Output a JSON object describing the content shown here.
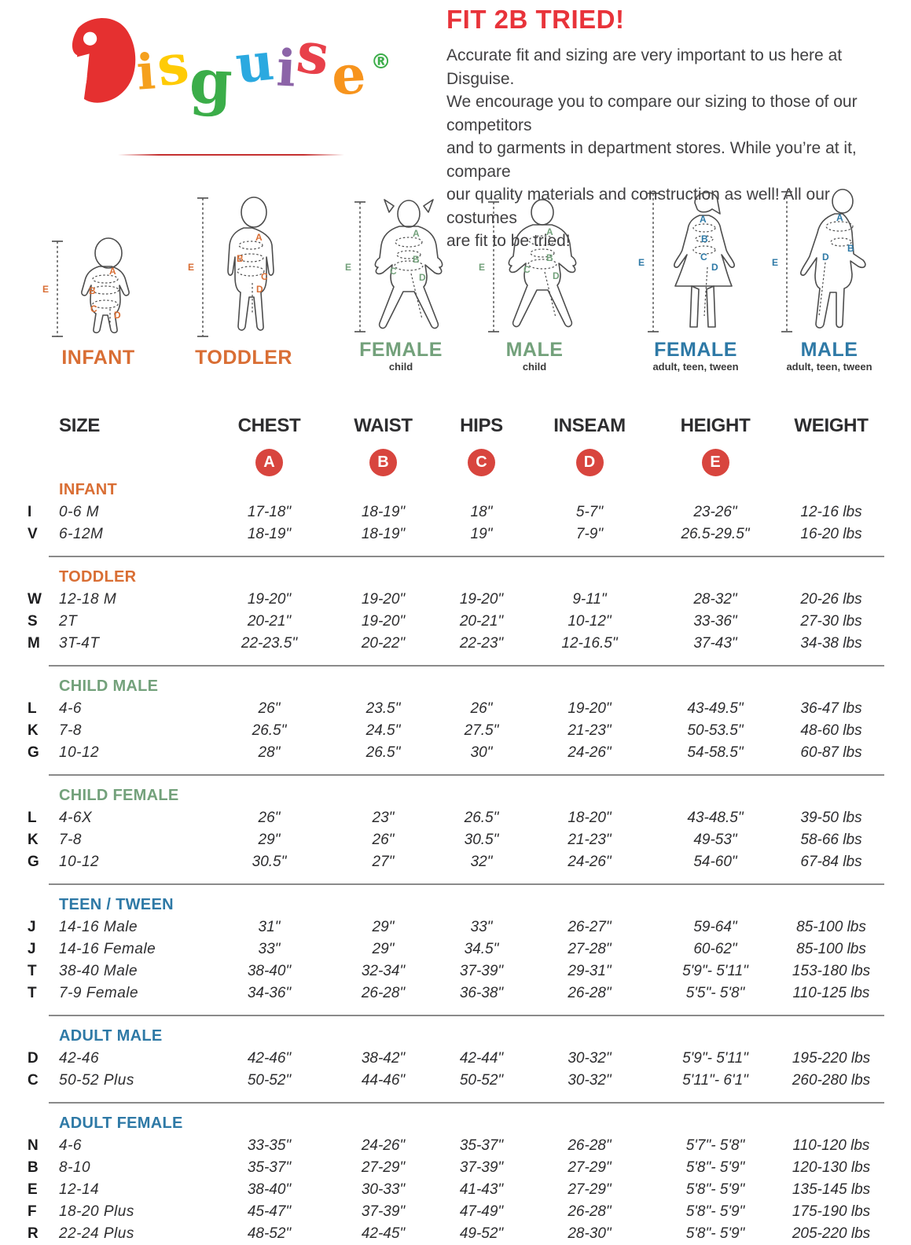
{
  "logo": {
    "letters": [
      {
        "ch": "D",
        "color": "#e53030"
      },
      {
        "ch": "i",
        "color": "#f5a01d"
      },
      {
        "ch": "s",
        "color": "#ffcb05"
      },
      {
        "ch": "g",
        "color": "#3bad49"
      },
      {
        "ch": "u",
        "color": "#2ba9e0"
      },
      {
        "ch": "i",
        "color": "#8c64a8"
      },
      {
        "ch": "s",
        "color": "#e8404a"
      },
      {
        "ch": "e",
        "color": "#f7941d"
      }
    ],
    "reg_mark": "®",
    "reg_color": "#3bad49"
  },
  "intro": {
    "title": "FIT 2B TRIED!",
    "title_color": "#e8333a",
    "lines": [
      "Accurate fit and sizing are very important to us here at Disguise.",
      "We encourage you to compare our sizing to those of our competitors",
      "and to garments in department stores. While you’re at it, compare",
      "our quality materials and construction as well! All our costumes",
      "are fit to be tried!"
    ]
  },
  "figures": [
    {
      "label": "INFANT",
      "sublabel": "",
      "color": "#d96e34",
      "letters": [
        "A",
        "B",
        "C",
        "D",
        "E"
      ]
    },
    {
      "label": "TODDLER",
      "sublabel": "",
      "color": "#d96e34",
      "letters": [
        "A",
        "B",
        "C",
        "D",
        "E"
      ]
    },
    {
      "label": "FEMALE",
      "sublabel": "child",
      "color": "#73a17b",
      "letters": [
        "A",
        "B",
        "C",
        "D",
        "E"
      ]
    },
    {
      "label": "MALE",
      "sublabel": "child",
      "color": "#73a17b",
      "letters": [
        "A",
        "B",
        "C",
        "D",
        "E"
      ]
    },
    {
      "label": "FEMALE",
      "sublabel": "adult, teen, tween",
      "color": "#2e79a6",
      "letters": [
        "A",
        "B",
        "C",
        "D",
        "E"
      ]
    },
    {
      "label": "MALE",
      "sublabel": "adult, teen, tween",
      "color": "#2e79a6",
      "letters": [
        "A",
        "B",
        "D",
        "E"
      ]
    }
  ],
  "table": {
    "columns": [
      "SIZE",
      "CHEST",
      "WAIST",
      "HIPS",
      "INSEAM",
      "HEIGHT",
      "WEIGHT"
    ],
    "badges": [
      "A",
      "B",
      "C",
      "D",
      "E"
    ],
    "badge_color": "#d8453e",
    "sections": [
      {
        "name": "INFANT",
        "color": "#d96e34",
        "rows": [
          {
            "letter": "I",
            "size": "0-6 M",
            "chest": "17-18\"",
            "waist": "18-19\"",
            "hips": "18\"",
            "inseam": "5-7\"",
            "height": "23-26\"",
            "weight": "12-16 lbs"
          },
          {
            "letter": "V",
            "size": "6-12M",
            "chest": "18-19\"",
            "waist": "18-19\"",
            "hips": "19\"",
            "inseam": "7-9\"",
            "height": "26.5-29.5\"",
            "weight": "16-20 lbs"
          }
        ]
      },
      {
        "name": "TODDLER",
        "color": "#d96e34",
        "rows": [
          {
            "letter": "W",
            "size": "12-18 M",
            "chest": "19-20\"",
            "waist": "19-20\"",
            "hips": "19-20\"",
            "inseam": "9-11\"",
            "height": "28-32\"",
            "weight": "20-26 lbs"
          },
          {
            "letter": "S",
            "size": "2T",
            "chest": "20-21\"",
            "waist": "19-20\"",
            "hips": "20-21\"",
            "inseam": "10-12\"",
            "height": "33-36\"",
            "weight": "27-30 lbs"
          },
          {
            "letter": "M",
            "size": "3T-4T",
            "chest": "22-23.5\"",
            "waist": "20-22\"",
            "hips": "22-23\"",
            "inseam": "12-16.5\"",
            "height": "37-43\"",
            "weight": "34-38 lbs"
          }
        ]
      },
      {
        "name": "CHILD MALE",
        "color": "#73a17b",
        "rows": [
          {
            "letter": "L",
            "size": "4-6",
            "chest": "26\"",
            "waist": "23.5\"",
            "hips": "26\"",
            "inseam": "19-20\"",
            "height": "43-49.5\"",
            "weight": "36-47 lbs"
          },
          {
            "letter": "K",
            "size": "7-8",
            "chest": "26.5\"",
            "waist": "24.5\"",
            "hips": "27.5\"",
            "inseam": "21-23\"",
            "height": "50-53.5\"",
            "weight": "48-60 lbs"
          },
          {
            "letter": "G",
            "size": "10-12",
            "chest": "28\"",
            "waist": "26.5\"",
            "hips": "30\"",
            "inseam": "24-26\"",
            "height": "54-58.5\"",
            "weight": "60-87 lbs"
          }
        ]
      },
      {
        "name": "CHILD FEMALE",
        "color": "#73a17b",
        "rows": [
          {
            "letter": "L",
            "size": "4-6X",
            "chest": "26\"",
            "waist": "23\"",
            "hips": "26.5\"",
            "inseam": "18-20\"",
            "height": "43-48.5\"",
            "weight": "39-50 lbs"
          },
          {
            "letter": "K",
            "size": "7-8",
            "chest": "29\"",
            "waist": "26\"",
            "hips": "30.5\"",
            "inseam": "21-23\"",
            "height": "49-53\"",
            "weight": "58-66 lbs"
          },
          {
            "letter": "G",
            "size": "10-12",
            "chest": "30.5\"",
            "waist": "27\"",
            "hips": "32\"",
            "inseam": "24-26\"",
            "height": "54-60\"",
            "weight": "67-84 lbs"
          }
        ]
      },
      {
        "name": "TEEN / TWEEN",
        "color": "#2e79a6",
        "rows": [
          {
            "letter": "J",
            "size": "14-16 Male",
            "chest": "31\"",
            "waist": "29\"",
            "hips": "33\"",
            "inseam": "26-27\"",
            "height": "59-64\"",
            "weight": "85-100 lbs"
          },
          {
            "letter": "J",
            "size": "14-16 Female",
            "chest": "33\"",
            "waist": "29\"",
            "hips": "34.5\"",
            "inseam": "27-28\"",
            "height": "60-62\"",
            "weight": "85-100 lbs"
          },
          {
            "letter": "T",
            "size": "38-40 Male",
            "chest": "38-40\"",
            "waist": "32-34\"",
            "hips": "37-39\"",
            "inseam": "29-31\"",
            "height": "5'9\"- 5'11\"",
            "weight": "153-180 lbs"
          },
          {
            "letter": "T",
            "size": "7-9 Female",
            "chest": "34-36\"",
            "waist": "26-28\"",
            "hips": "36-38\"",
            "inseam": "26-28\"",
            "height": "5'5\"- 5'8\"",
            "weight": "110-125 lbs"
          }
        ]
      },
      {
        "name": "ADULT MALE",
        "color": "#2e79a6",
        "rows": [
          {
            "letter": "D",
            "size": "42-46",
            "chest": "42-46\"",
            "waist": "38-42\"",
            "hips": "42-44\"",
            "inseam": "30-32\"",
            "height": "5'9\"- 5'11\"",
            "weight": "195-220 lbs"
          },
          {
            "letter": "C",
            "size": "50-52 Plus",
            "chest": "50-52\"",
            "waist": "44-46\"",
            "hips": "50-52\"",
            "inseam": "30-32\"",
            "height": "5'11\"- 6'1\"",
            "weight": "260-280 lbs"
          }
        ]
      },
      {
        "name": "ADULT FEMALE",
        "color": "#2e79a6",
        "rows": [
          {
            "letter": "N",
            "size": "4-6",
            "chest": "33-35\"",
            "waist": "24-26\"",
            "hips": "35-37\"",
            "inseam": "26-28\"",
            "height": "5'7\"- 5'8\"",
            "weight": "110-120 lbs"
          },
          {
            "letter": "B",
            "size": "8-10",
            "chest": "35-37\"",
            "waist": "27-29\"",
            "hips": "37-39\"",
            "inseam": "27-29\"",
            "height": "5'8\"- 5'9\"",
            "weight": "120-130 lbs"
          },
          {
            "letter": "E",
            "size": "12-14",
            "chest": "38-40\"",
            "waist": "30-33\"",
            "hips": "41-43\"",
            "inseam": "27-29\"",
            "height": "5'8\"- 5'9\"",
            "weight": "135-145 lbs"
          },
          {
            "letter": "F",
            "size": "18-20 Plus",
            "chest": "45-47\"",
            "waist": "37-39\"",
            "hips": "47-49\"",
            "inseam": "26-28\"",
            "height": "5'8\"- 5'9\"",
            "weight": "175-190 lbs"
          },
          {
            "letter": "R",
            "size": "22-24 Plus",
            "chest": "48-52\"",
            "waist": "42-45\"",
            "hips": "49-52\"",
            "inseam": "28-30\"",
            "height": "5'8\"- 5'9\"",
            "weight": "205-220 lbs"
          }
        ]
      }
    ]
  }
}
